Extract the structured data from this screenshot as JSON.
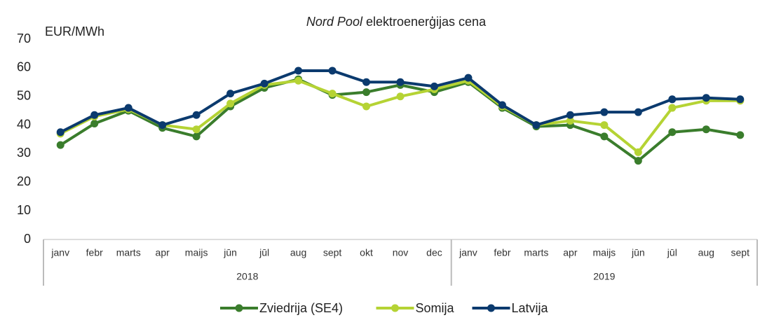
{
  "chart_data": {
    "type": "line",
    "title": {
      "italic": "Nord Pool",
      "rest": "elektroenerģijas cena"
    },
    "y_label": "EUR/MWh",
    "categories": [
      "janv",
      "febr",
      "marts",
      "apr",
      "maijs",
      "jūn",
      "jūl",
      "aug",
      "sept",
      "okt",
      "nov",
      "dec",
      "janv",
      "febr",
      "marts",
      "apr",
      "maijs",
      "jūn",
      "jūl",
      "aug",
      "sept"
    ],
    "category_groups": [
      {
        "label": "2018",
        "size": 12
      },
      {
        "label": "2019",
        "size": 9
      }
    ],
    "series": [
      {
        "name": "Zviedrija (SE4)",
        "color": "#3a7d2c",
        "values": [
          33,
          40.5,
          45,
          39,
          36,
          46.5,
          53,
          56,
          50.5,
          51.5,
          54,
          51.5,
          55,
          46,
          39.5,
          40,
          36,
          27.5,
          37.5,
          38.5,
          36.5
        ]
      },
      {
        "name": "Somija",
        "color": "#b5d334",
        "values": [
          37,
          43,
          45.5,
          40,
          38.5,
          47.5,
          54,
          55.5,
          51,
          46.5,
          50,
          52.5,
          55.5,
          46.5,
          40,
          41.5,
          40,
          30.5,
          46,
          48.5,
          48.5
        ]
      },
      {
        "name": "Latvija",
        "color": "#0b3a6e",
        "values": [
          37.5,
          43.5,
          46,
          40,
          43.5,
          51,
          54.5,
          59,
          59,
          55,
          55,
          53.5,
          56.5,
          47,
          40,
          43.5,
          44.5,
          44.5,
          49,
          49.5,
          49
        ]
      }
    ],
    "ylim": [
      0,
      70
    ],
    "yticks": [
      0,
      10,
      20,
      30,
      40,
      50,
      60,
      70
    ],
    "grid": false,
    "legend": "bottom"
  }
}
